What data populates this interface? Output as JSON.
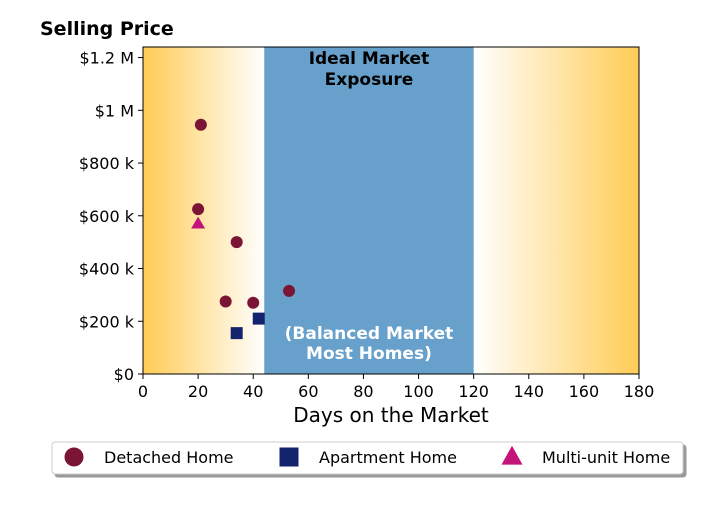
{
  "chart_data": {
    "type": "scatter",
    "title": "",
    "ylabel": "Selling Price",
    "xlabel": "Days on the Market",
    "xlim": [
      0,
      180
    ],
    "ylim": [
      0,
      1240000
    ],
    "x_ticks": [
      0,
      20,
      40,
      60,
      80,
      100,
      120,
      140,
      160,
      180
    ],
    "x_tick_labels": [
      "0",
      "20",
      "40",
      "60",
      "80",
      "100",
      "120",
      "140",
      "160",
      "180"
    ],
    "y_ticks": [
      0,
      200000,
      400000,
      600000,
      800000,
      1000000,
      1200000
    ],
    "y_tick_labels": [
      "$0",
      "$200 k",
      "$400 k",
      "$600 k",
      "$800 k",
      "$1 M",
      "$1.2 M"
    ],
    "grid": false,
    "background_gradient": {
      "edge_color": "#ffcc55",
      "center_color": "#ffffff"
    },
    "ideal_band": {
      "x_range": [
        44,
        120
      ],
      "color": "#68a0cc",
      "title_lines": [
        "Ideal Market",
        "Exposure"
      ],
      "note_lines": [
        "(Balanced Market",
        "Most Homes)"
      ]
    },
    "series": [
      {
        "name": "Detached Home",
        "marker": "circle",
        "color": "#7b1535",
        "points": [
          [
            21,
            945000
          ],
          [
            20,
            625000
          ],
          [
            34,
            500000
          ],
          [
            30,
            275000
          ],
          [
            40,
            270000
          ],
          [
            53,
            315000
          ]
        ]
      },
      {
        "name": "Apartment Home",
        "marker": "square",
        "color": "#14236e",
        "points": [
          [
            34,
            155000
          ],
          [
            42,
            210000
          ]
        ]
      },
      {
        "name": "Multi-unit Home",
        "marker": "triangle",
        "color": "#c4137a",
        "points": [
          [
            20,
            570000
          ]
        ]
      }
    ],
    "legend_position": "bottom"
  }
}
